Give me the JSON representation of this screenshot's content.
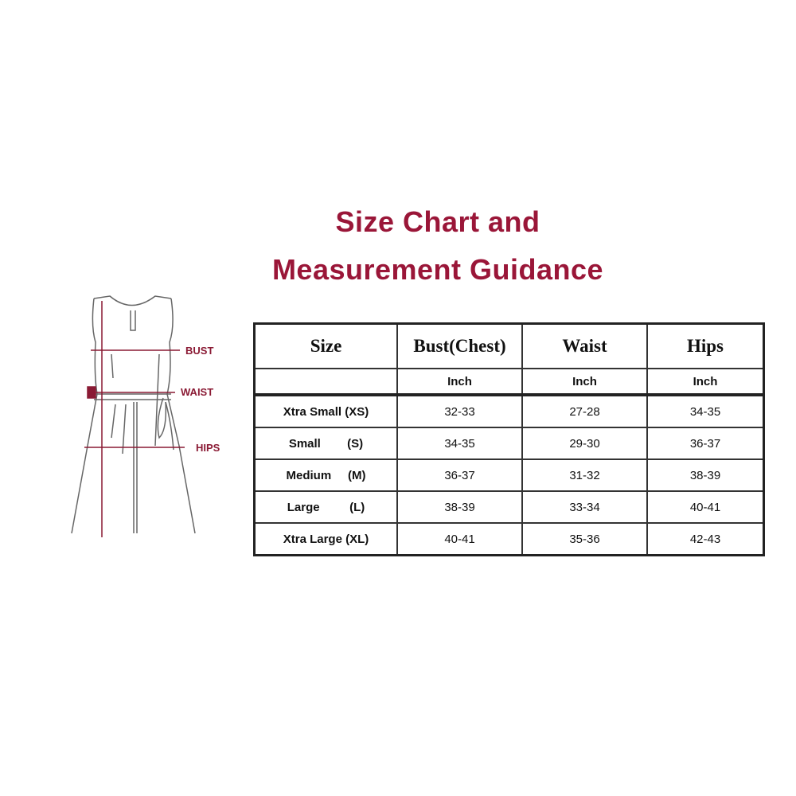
{
  "title": {
    "line1": "Size Chart and",
    "line2": "Measurement Guidance"
  },
  "diagram": {
    "labels": [
      "BUST",
      "WAIST",
      "HIPS"
    ]
  },
  "table": {
    "headers": [
      "Size",
      "Bust(Chest)",
      "Waist",
      "Hips"
    ],
    "units": [
      "",
      "Inch",
      "Inch",
      "Inch"
    ],
    "rows": [
      {
        "size": "Xtra Small (XS)",
        "bust": "32-33",
        "waist": "27-28",
        "hips": "34-35"
      },
      {
        "size": "Small        (S)",
        "bust": "34-35",
        "waist": "29-30",
        "hips": "36-37"
      },
      {
        "size": "Medium     (M)",
        "bust": "36-37",
        "waist": "31-32",
        "hips": "38-39"
      },
      {
        "size": "Large         (L)",
        "bust": "38-39",
        "waist": "33-34",
        "hips": "40-41"
      },
      {
        "size": "Xtra Large (XL)",
        "bust": "40-41",
        "waist": "35-36",
        "hips": "42-43"
      }
    ]
  },
  "colors": {
    "accent": "#9a1638",
    "border": "#222222"
  }
}
